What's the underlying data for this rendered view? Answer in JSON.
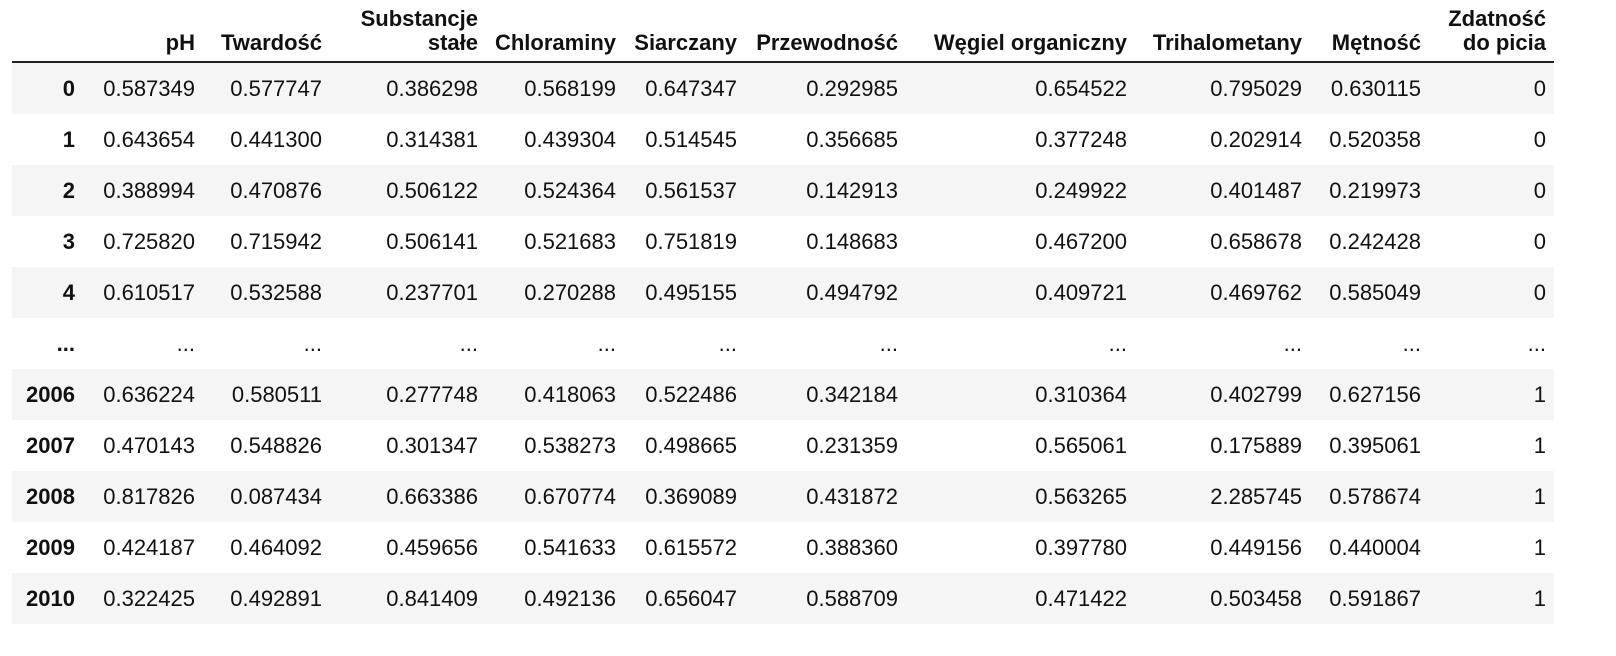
{
  "table": {
    "columns": [
      "",
      "pH",
      "Twardość",
      "Substancje\nstałe",
      "Chloraminy",
      "Siarczany",
      "Przewodność",
      "Węgiel organiczny",
      "Trihalometany",
      "Mętność",
      "Zdatność\ndo picia"
    ],
    "rows": [
      [
        "0",
        "0.587349",
        "0.577747",
        "0.386298",
        "0.568199",
        "0.647347",
        "0.292985",
        "0.654522",
        "0.795029",
        "0.630115",
        "0"
      ],
      [
        "1",
        "0.643654",
        "0.441300",
        "0.314381",
        "0.439304",
        "0.514545",
        "0.356685",
        "0.377248",
        "0.202914",
        "0.520358",
        "0"
      ],
      [
        "2",
        "0.388994",
        "0.470876",
        "0.506122",
        "0.524364",
        "0.561537",
        "0.142913",
        "0.249922",
        "0.401487",
        "0.219973",
        "0"
      ],
      [
        "3",
        "0.725820",
        "0.715942",
        "0.506141",
        "0.521683",
        "0.751819",
        "0.148683",
        "0.467200",
        "0.658678",
        "0.242428",
        "0"
      ],
      [
        "4",
        "0.610517",
        "0.532588",
        "0.237701",
        "0.270288",
        "0.495155",
        "0.494792",
        "0.409721",
        "0.469762",
        "0.585049",
        "0"
      ],
      [
        "...",
        "...",
        "...",
        "...",
        "...",
        "...",
        "...",
        "...",
        "...",
        "...",
        "..."
      ],
      [
        "2006",
        "0.636224",
        "0.580511",
        "0.277748",
        "0.418063",
        "0.522486",
        "0.342184",
        "0.310364",
        "0.402799",
        "0.627156",
        "1"
      ],
      [
        "2007",
        "0.470143",
        "0.548826",
        "0.301347",
        "0.538273",
        "0.498665",
        "0.231359",
        "0.565061",
        "0.175889",
        "0.395061",
        "1"
      ],
      [
        "2008",
        "0.817826",
        "0.087434",
        "0.663386",
        "0.670774",
        "0.369089",
        "0.431872",
        "0.563265",
        "2.285745",
        "0.578674",
        "1"
      ],
      [
        "2009",
        "0.424187",
        "0.464092",
        "0.459656",
        "0.541633",
        "0.615572",
        "0.388360",
        "0.397780",
        "0.449156",
        "0.440004",
        "1"
      ],
      [
        "2010",
        "0.322425",
        "0.492891",
        "0.841409",
        "0.492136",
        "0.656047",
        "0.588709",
        "0.471422",
        "0.503458",
        "0.591867",
        "1"
      ]
    ]
  }
}
